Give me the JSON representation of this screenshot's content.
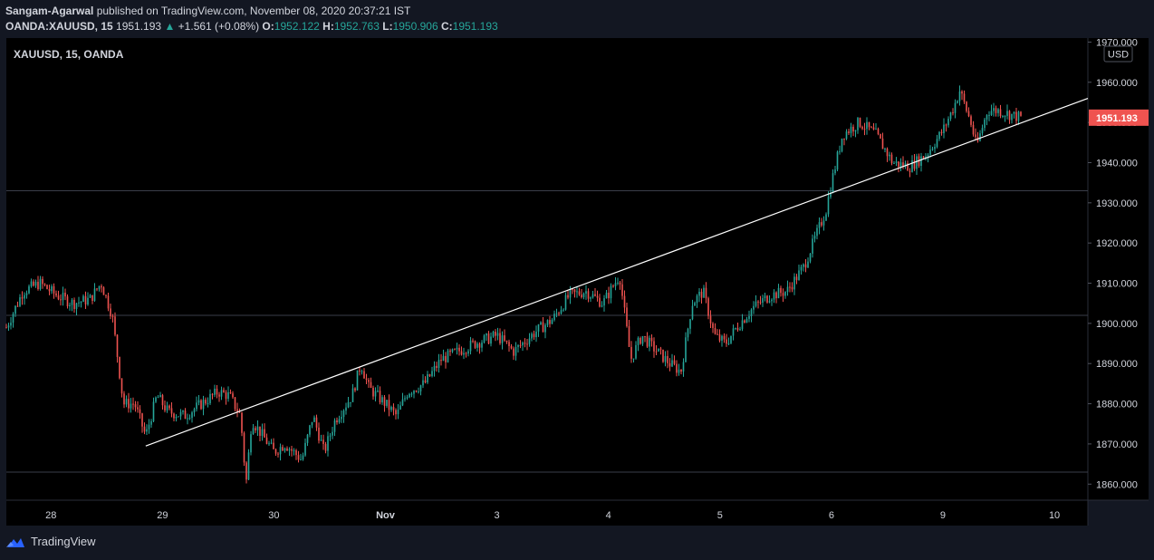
{
  "header": {
    "author": "Sangam-Agarwal",
    "published_text": "published on TradingView.com, November 08, 2020 20:37:21 IST",
    "symbol": "OANDA:XAUUSD, 15",
    "last": "1951.193",
    "change": "+1.561 (+0.08%)",
    "o_label": "O:",
    "o": "1952.122",
    "h_label": "H:",
    "h": "1952.763",
    "l_label": "L:",
    "l": "1950.906",
    "c_label": "C:",
    "c": "1951.193"
  },
  "footer": {
    "brand": "TradingView"
  },
  "colors": {
    "bg": "#000000",
    "up": "#26a69a",
    "down": "#ef5350",
    "grid": "#3a3e4a",
    "trendline": "#ffffff",
    "text": "#d1d4dc"
  },
  "chart_data": {
    "type": "candlestick",
    "title": "XAUUSD, 15, OANDA",
    "currency": "USD",
    "last_price": "1951.193",
    "ylim": [
      1856,
      1971
    ],
    "y_ticks": [
      1860,
      1870,
      1880,
      1890,
      1900,
      1910,
      1920,
      1930,
      1940,
      1950,
      1960,
      1970
    ],
    "y_tick_labels": [
      "1860.000",
      "1870.000",
      "1880.000",
      "1890.000",
      "1900.000",
      "1910.000",
      "1920.000",
      "1930.000",
      "1940.000",
      "1950.000",
      "1960.000",
      "1970.000"
    ],
    "xlim": [
      27.6,
      37.3
    ],
    "x_ticks": [
      28,
      29,
      30,
      31,
      32,
      33,
      34,
      35,
      36,
      37
    ],
    "x_tick_labels": [
      "28",
      "29",
      "30",
      "Nov",
      "3",
      "4",
      "5",
      "6",
      "9",
      "10"
    ],
    "horizontal_lines": [
      1933,
      1902,
      1863
    ],
    "trendline": {
      "from": [
        28.85,
        1869.5
      ],
      "to": [
        37.3,
        1956
      ]
    },
    "series_path": [
      [
        27.6,
        1899
      ],
      [
        27.75,
        1908
      ],
      [
        27.9,
        1910
      ],
      [
        28.05,
        1907
      ],
      [
        28.2,
        1905
      ],
      [
        28.35,
        1906
      ],
      [
        28.45,
        1910
      ],
      [
        28.55,
        1902
      ],
      [
        28.65,
        1880
      ],
      [
        28.75,
        1880
      ],
      [
        28.85,
        1872
      ],
      [
        28.95,
        1882
      ],
      [
        29.05,
        1878
      ],
      [
        29.2,
        1877
      ],
      [
        29.35,
        1880
      ],
      [
        29.5,
        1883
      ],
      [
        29.6,
        1882
      ],
      [
        29.7,
        1877
      ],
      [
        29.75,
        1860
      ],
      [
        29.8,
        1876
      ],
      [
        29.9,
        1872
      ],
      [
        30.0,
        1868
      ],
      [
        30.1,
        1870
      ],
      [
        30.25,
        1866
      ],
      [
        30.35,
        1877
      ],
      [
        30.45,
        1868
      ],
      [
        30.55,
        1876
      ],
      [
        30.7,
        1882
      ],
      [
        30.78,
        1890
      ],
      [
        30.85,
        1884
      ],
      [
        31.0,
        1880
      ],
      [
        31.1,
        1877
      ],
      [
        31.2,
        1883
      ],
      [
        31.35,
        1885
      ],
      [
        31.5,
        1891
      ],
      [
        31.65,
        1893
      ],
      [
        31.8,
        1895
      ],
      [
        32.0,
        1897
      ],
      [
        32.15,
        1893
      ],
      [
        32.35,
        1898
      ],
      [
        32.5,
        1901
      ],
      [
        32.65,
        1907
      ],
      [
        32.8,
        1908
      ],
      [
        32.95,
        1905
      ],
      [
        33.1,
        1912
      ],
      [
        33.2,
        1891
      ],
      [
        33.3,
        1897
      ],
      [
        33.4,
        1894
      ],
      [
        33.55,
        1890
      ],
      [
        33.65,
        1888
      ],
      [
        33.75,
        1905
      ],
      [
        33.85,
        1908
      ],
      [
        33.95,
        1897
      ],
      [
        34.05,
        1895
      ],
      [
        34.15,
        1899
      ],
      [
        34.3,
        1904
      ],
      [
        34.45,
        1907
      ],
      [
        34.6,
        1908
      ],
      [
        34.75,
        1914
      ],
      [
        34.85,
        1921
      ],
      [
        34.95,
        1928
      ],
      [
        35.0,
        1935
      ],
      [
        35.1,
        1947
      ],
      [
        35.25,
        1950
      ],
      [
        35.4,
        1947
      ],
      [
        35.55,
        1940
      ],
      [
        35.7,
        1939
      ],
      [
        35.85,
        1942
      ],
      [
        36.0,
        1948
      ],
      [
        36.1,
        1954
      ],
      [
        36.15,
        1958
      ],
      [
        36.25,
        1950
      ],
      [
        36.3,
        1944
      ],
      [
        36.4,
        1953
      ],
      [
        36.5,
        1953
      ],
      [
        36.6,
        1952
      ],
      [
        36.7,
        1951.2
      ]
    ]
  }
}
